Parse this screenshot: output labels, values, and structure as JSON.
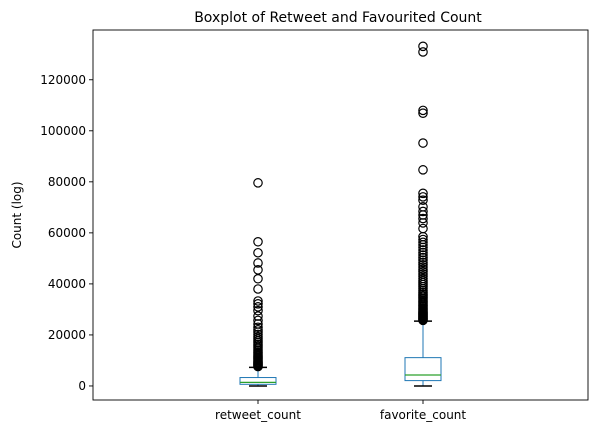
{
  "chart_data": {
    "type": "boxplot",
    "title": "Boxplot of Retweet and Favourited Count",
    "xlabel": "",
    "ylabel": "Count (log)",
    "ylim": [
      -5500,
      139500
    ],
    "yticks": [
      0,
      20000,
      40000,
      60000,
      80000,
      100000,
      120000
    ],
    "ytick_labels": [
      "0",
      "20000",
      "40000",
      "60000",
      "80000",
      "100000",
      "120000"
    ],
    "grid": false,
    "legend": "none",
    "categories": [
      "retweet_count",
      "favorite_count"
    ],
    "boxes": [
      {
        "q1": 650,
        "median": 1400,
        "q3": 3300,
        "whisker_low": 0,
        "whisker_high": 7300,
        "outliers": [
          7600,
          7900,
          8200,
          8500,
          8800,
          9100,
          9400,
          9800,
          10200,
          10600,
          11000,
          11400,
          11800,
          12300,
          12800,
          13300,
          13900,
          14500,
          15100,
          15700,
          16300,
          17000,
          17700,
          18500,
          19300,
          20200,
          21100,
          22000,
          23000,
          24300,
          25700,
          27400,
          29500,
          31000,
          32200,
          33300,
          38000,
          42000,
          45500,
          48200,
          52200,
          56500,
          79600
        ]
      },
      {
        "q1": 2100,
        "median": 4300,
        "q3": 11100,
        "whisker_low": 0,
        "whisker_high": 25400,
        "outliers": [
          25700,
          26000,
          26300,
          26600,
          26900,
          27200,
          27500,
          27800,
          28100,
          28400,
          28700,
          29000,
          29400,
          29800,
          30200,
          30600,
          31100,
          31600,
          32100,
          32600,
          33100,
          33600,
          34200,
          34800,
          35400,
          36000,
          36700,
          37400,
          38100,
          38900,
          39700,
          40500,
          41300,
          42100,
          43000,
          43900,
          44800,
          45700,
          46600,
          47500,
          48400,
          49300,
          50300,
          51300,
          52300,
          53300,
          54300,
          55300,
          56300,
          57400,
          58500,
          61700,
          63900,
          65600,
          67000,
          68400,
          70200,
          72800,
          74100,
          75500,
          84700,
          95200,
          106900,
          108000,
          130900,
          133100
        ]
      }
    ]
  },
  "colors": {
    "box": "#1f77b4",
    "median": "#2ca02c",
    "whisker": "#000000",
    "outlier": "#000000"
  }
}
